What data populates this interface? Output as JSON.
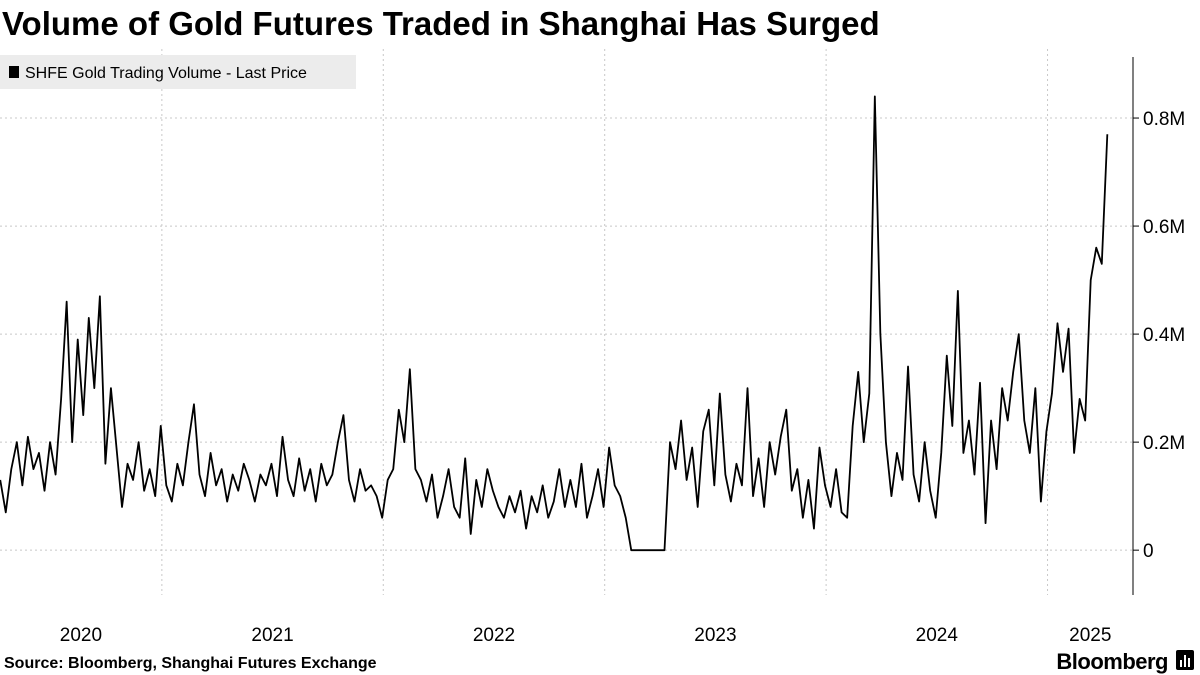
{
  "chart_data": {
    "type": "line",
    "title": "Volume of Gold Futures Traded in Shanghai Has Surged",
    "source": "Source: Bloomberg, Shanghai Futures Exchange",
    "brand": "Bloomberg",
    "x": [
      2020.27,
      2020.295,
      2020.32,
      2020.345,
      2020.37,
      2020.395,
      2020.42,
      2020.445,
      2020.47,
      2020.495,
      2020.52,
      2020.545,
      2020.57,
      2020.595,
      2020.62,
      2020.645,
      2020.67,
      2020.695,
      2020.72,
      2020.745,
      2020.77,
      2020.795,
      2020.82,
      2020.845,
      2020.87,
      2020.895,
      2020.92,
      2020.945,
      2020.97,
      2020.995,
      2021.02,
      2021.045,
      2021.07,
      2021.095,
      2021.12,
      2021.145,
      2021.17,
      2021.195,
      2021.22,
      2021.245,
      2021.27,
      2021.295,
      2021.32,
      2021.345,
      2021.37,
      2021.395,
      2021.42,
      2021.445,
      2021.47,
      2021.495,
      2021.52,
      2021.545,
      2021.57,
      2021.595,
      2021.62,
      2021.645,
      2021.67,
      2021.695,
      2021.72,
      2021.745,
      2021.77,
      2021.795,
      2021.82,
      2021.845,
      2021.87,
      2021.895,
      2021.92,
      2021.945,
      2021.97,
      2021.995,
      2022.02,
      2022.045,
      2022.07,
      2022.095,
      2022.12,
      2022.145,
      2022.17,
      2022.195,
      2022.22,
      2022.245,
      2022.27,
      2022.295,
      2022.32,
      2022.345,
      2022.37,
      2022.395,
      2022.42,
      2022.445,
      2022.47,
      2022.495,
      2022.52,
      2022.545,
      2022.57,
      2022.595,
      2022.62,
      2022.645,
      2022.67,
      2022.695,
      2022.72,
      2022.745,
      2022.77,
      2022.795,
      2022.82,
      2022.845,
      2022.87,
      2022.895,
      2022.92,
      2022.945,
      2022.97,
      2022.995,
      2023.02,
      2023.045,
      2023.07,
      2023.095,
      2023.12,
      2023.145,
      2023.17,
      2023.195,
      2023.22,
      2023.245,
      2023.27,
      2023.295,
      2023.32,
      2023.345,
      2023.37,
      2023.395,
      2023.42,
      2023.445,
      2023.47,
      2023.495,
      2023.52,
      2023.545,
      2023.57,
      2023.595,
      2023.62,
      2023.645,
      2023.67,
      2023.695,
      2023.72,
      2023.745,
      2023.77,
      2023.795,
      2023.82,
      2023.845,
      2023.87,
      2023.895,
      2023.92,
      2023.945,
      2023.97,
      2023.995,
      2024.02,
      2024.045,
      2024.07,
      2024.095,
      2024.12,
      2024.145,
      2024.17,
      2024.195,
      2024.22,
      2024.245,
      2024.27,
      2024.295,
      2024.32,
      2024.345,
      2024.37,
      2024.395,
      2024.42,
      2024.445,
      2024.47,
      2024.495,
      2024.52,
      2024.545,
      2024.57,
      2024.595,
      2024.62,
      2024.645,
      2024.67,
      2024.695,
      2024.72,
      2024.745,
      2024.77,
      2024.795,
      2024.82,
      2024.845,
      2024.87,
      2024.895,
      2024.92,
      2024.945,
      2024.97,
      2024.995,
      2025.02,
      2025.045,
      2025.07,
      2025.095,
      2025.12,
      2025.145,
      2025.17,
      2025.195,
      2025.22,
      2025.245,
      2025.27
    ],
    "series": [
      {
        "name": "SHFE Gold Trading Volume - Last Price",
        "color": "#000000",
        "values": [
          130000,
          70000,
          150000,
          200000,
          120000,
          210000,
          150000,
          180000,
          110000,
          200000,
          140000,
          280000,
          460000,
          200000,
          390000,
          250000,
          430000,
          300000,
          470000,
          160000,
          300000,
          190000,
          80000,
          160000,
          130000,
          200000,
          110000,
          150000,
          100000,
          230000,
          120000,
          90000,
          160000,
          120000,
          200000,
          270000,
          140000,
          100000,
          180000,
          120000,
          150000,
          90000,
          140000,
          110000,
          160000,
          130000,
          90000,
          140000,
          120000,
          160000,
          100000,
          210000,
          130000,
          100000,
          170000,
          110000,
          150000,
          90000,
          160000,
          120000,
          140000,
          200000,
          250000,
          130000,
          90000,
          150000,
          110000,
          120000,
          100000,
          60000,
          130000,
          150000,
          260000,
          200000,
          335000,
          150000,
          130000,
          90000,
          140000,
          60000,
          100000,
          150000,
          80000,
          60000,
          170000,
          30000,
          130000,
          80000,
          150000,
          110000,
          80000,
          60000,
          100000,
          70000,
          110000,
          40000,
          100000,
          70000,
          120000,
          60000,
          90000,
          150000,
          80000,
          130000,
          80000,
          160000,
          60000,
          100000,
          150000,
          80000,
          190000,
          120000,
          100000,
          60000,
          0,
          0,
          0,
          0,
          0,
          0,
          0,
          200000,
          150000,
          240000,
          130000,
          190000,
          80000,
          220000,
          260000,
          120000,
          290000,
          140000,
          90000,
          160000,
          120000,
          300000,
          100000,
          170000,
          80000,
          200000,
          140000,
          210000,
          260000,
          110000,
          150000,
          60000,
          130000,
          40000,
          190000,
          120000,
          80000,
          150000,
          70000,
          60000,
          230000,
          330000,
          200000,
          290000,
          840000,
          400000,
          200000,
          100000,
          180000,
          130000,
          340000,
          140000,
          90000,
          200000,
          110000,
          60000,
          180000,
          360000,
          230000,
          480000,
          180000,
          240000,
          140000,
          310000,
          50000,
          240000,
          150000,
          300000,
          240000,
          330000,
          400000,
          240000,
          180000,
          300000,
          90000,
          220000,
          290000,
          420000,
          330000,
          410000,
          180000,
          280000,
          240000,
          500000,
          560000,
          530000,
          770000
        ]
      }
    ],
    "xlim": [
      2020.269,
      2025.386
    ],
    "xticks": [
      2020,
      2021,
      2022,
      2023,
      2024,
      2025
    ],
    "ylim": [
      -83000,
      913000
    ],
    "yticks": [
      0,
      {
        "value": 200000,
        "label": "0.2M"
      },
      {
        "value": 400000,
        "label": "0.4M"
      },
      {
        "value": 600000,
        "label": "0.6M"
      },
      {
        "value": 800000,
        "label": "0.8M"
      }
    ],
    "grid": true,
    "legend": "top-left"
  }
}
